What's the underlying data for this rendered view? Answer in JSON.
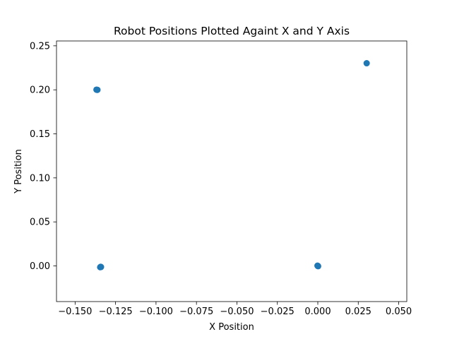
{
  "chart_data": {
    "type": "scatter",
    "title": "Robot Positions Plotted Againt X and Y Axis",
    "xlabel": "X Position",
    "ylabel": "Y Position",
    "xlim": [
      -0.1615,
      0.055
    ],
    "ylim": [
      -0.0405,
      0.2555
    ],
    "xticks": [
      -0.15,
      -0.125,
      -0.1,
      -0.075,
      -0.05,
      -0.025,
      0.0,
      0.025,
      0.05
    ],
    "xtick_labels": [
      "−0.150",
      "−0.125",
      "−0.100",
      "−0.075",
      "−0.050",
      "−0.025",
      "0.000",
      "0.025",
      "0.050"
    ],
    "yticks": [
      0.0,
      0.05,
      0.1,
      0.15,
      0.2,
      0.25
    ],
    "ytick_labels": [
      "0.00",
      "0.05",
      "0.10",
      "0.15",
      "0.20",
      "0.25"
    ],
    "grid": false,
    "legend": "none",
    "point_color": "#1f77b4",
    "points": [
      {
        "x": -0.1365,
        "y": 0.2
      },
      {
        "x": -0.1362,
        "y": 0.2
      },
      {
        "x": -0.1368,
        "y": 0.2002
      },
      {
        "x": -0.1342,
        "y": -0.001
      },
      {
        "x": -0.1345,
        "y": -0.0015
      },
      {
        "x": -0.134,
        "y": -0.0012
      },
      {
        "x": 0.0,
        "y": 0.0
      },
      {
        "x": 0.0002,
        "y": -0.0003
      },
      {
        "x": -0.0002,
        "y": 0.0003
      },
      {
        "x": 0.0302,
        "y": 0.2302
      }
    ]
  }
}
